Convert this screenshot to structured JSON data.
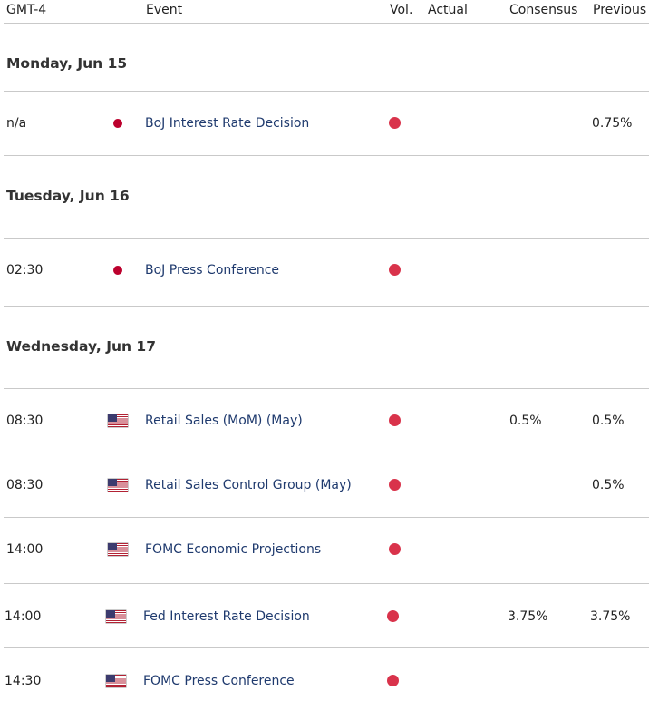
{
  "header": {
    "timezone": "GMT-4",
    "event": "Event",
    "vol": "Vol.",
    "actual": "Actual",
    "consensus": "Consensus",
    "previous": "Previous"
  },
  "days": [
    {
      "date": "Monday, Jun 15",
      "events": [
        {
          "time": "n/a",
          "country": "JP",
          "flag_icon": "japan-flag-icon",
          "event": "BoJ Interest Rate Decision",
          "volatility": "high",
          "actual": "",
          "consensus": "",
          "previous": "0.75%"
        }
      ]
    },
    {
      "date": "Tuesday, Jun 16",
      "events": [
        {
          "time": "02:30",
          "country": "JP",
          "flag_icon": "japan-flag-icon",
          "event": "BoJ Press Conference",
          "volatility": "high",
          "actual": "",
          "consensus": "",
          "previous": ""
        }
      ]
    },
    {
      "date": "Wednesday, Jun 17",
      "events": [
        {
          "time": "08:30",
          "country": "US",
          "flag_icon": "us-flag-icon",
          "event": "Retail Sales (MoM) (May)",
          "volatility": "high",
          "actual": "",
          "consensus": "0.5%",
          "previous": "0.5%"
        },
        {
          "time": "08:30",
          "country": "US",
          "flag_icon": "us-flag-icon",
          "event": "Retail Sales Control Group (May)",
          "volatility": "high",
          "actual": "",
          "consensus": "",
          "previous": "0.5%"
        },
        {
          "time": "14:00",
          "country": "US",
          "flag_icon": "us-flag-icon",
          "event": "FOMC Economic Projections",
          "volatility": "high",
          "actual": "",
          "consensus": "",
          "previous": ""
        },
        {
          "time": "14:00",
          "country": "US",
          "flag_icon": "us-flag-icon",
          "event": "Fed Interest Rate Decision",
          "volatility": "high",
          "actual": "",
          "consensus": "3.75%",
          "previous": "3.75%"
        },
        {
          "time": "14:30",
          "country": "US",
          "flag_icon": "us-flag-icon",
          "event": "FOMC Press Conference",
          "volatility": "high",
          "actual": "",
          "consensus": "",
          "previous": ""
        }
      ]
    }
  ],
  "colors": {
    "high_volatility": "#d9334b",
    "event_link": "#1f3a6e",
    "divider": "#c9c9c9"
  }
}
